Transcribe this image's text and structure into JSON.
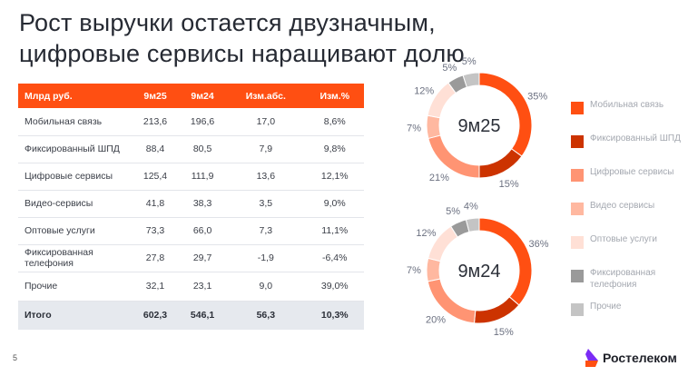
{
  "title": "Рост выручки остается двузначным, цифровые сервисы наращивают долю",
  "table": {
    "headers": [
      "Млрд руб.",
      "9м25",
      "9м24",
      "Изм.абс.",
      "Изм.%"
    ],
    "rows": [
      {
        "name": "Мобильная связь",
        "v25": "213,6",
        "v24": "196,6",
        "abs": "17,0",
        "pct": "8,6%"
      },
      {
        "name": "Фиксированный ШПД",
        "v25": "88,4",
        "v24": "80,5",
        "abs": "7,9",
        "pct": "9,8%"
      },
      {
        "name": "Цифровые сервисы",
        "v25": "125,4",
        "v24": "111,9",
        "abs": "13,6",
        "pct": "12,1%"
      },
      {
        "name": "Видео-сервисы",
        "v25": "41,8",
        "v24": "38,3",
        "abs": "3,5",
        "pct": "9,0%"
      },
      {
        "name": "Оптовые услуги",
        "v25": "73,3",
        "v24": "66,0",
        "abs": "7,3",
        "pct": "11,1%"
      },
      {
        "name": "Фиксированная телефония",
        "v25": "27,8",
        "v24": "29,7",
        "abs": "-1,9",
        "pct": "-6,4%"
      },
      {
        "name": "Прочие",
        "v25": "32,1",
        "v24": "23,1",
        "abs": "9,0",
        "pct": "39,0%"
      }
    ],
    "total": {
      "name": "Итого",
      "v25": "602,3",
      "v24": "546,1",
      "abs": "56,3",
      "pct": "10,3%"
    }
  },
  "colors": [
    "#ff4f12",
    "#cc3300",
    "#ff9473",
    "#ffb8a0",
    "#ffe0d6",
    "#9a9a9a",
    "#c4c4c4"
  ],
  "legend": [
    "Мобильная связь",
    "Фиксированный ШПД",
    "Цифровые сервисы",
    "Видео сервисы",
    "Оптовые услуги",
    "Фиксированная телефония",
    "Прочие"
  ],
  "page_number": "5",
  "logo_text": "Ростелеком",
  "chart_data": [
    {
      "type": "pie",
      "title": "9м25",
      "categories": [
        "Мобильная связь",
        "Фиксированный ШПД",
        "Цифровые сервисы",
        "Видео сервисы",
        "Оптовые услуги",
        "Фиксированная телефония",
        "Прочие"
      ],
      "values": [
        35,
        15,
        21,
        7,
        12,
        5,
        5
      ],
      "labels": [
        "35%",
        "15%",
        "21%",
        "7%",
        "12%",
        "5%",
        "5%"
      ]
    },
    {
      "type": "pie",
      "title": "9м24",
      "categories": [
        "Мобильная связь",
        "Фиксированный ШПД",
        "Цифровые сервисы",
        "Видео сервисы",
        "Оптовые услуги",
        "Фиксированная телефония",
        "Прочие"
      ],
      "values": [
        36,
        15,
        20,
        7,
        12,
        5,
        4
      ],
      "labels": [
        "36%",
        "15%",
        "20%",
        "7%",
        "12%",
        "5%",
        "4%"
      ]
    }
  ]
}
